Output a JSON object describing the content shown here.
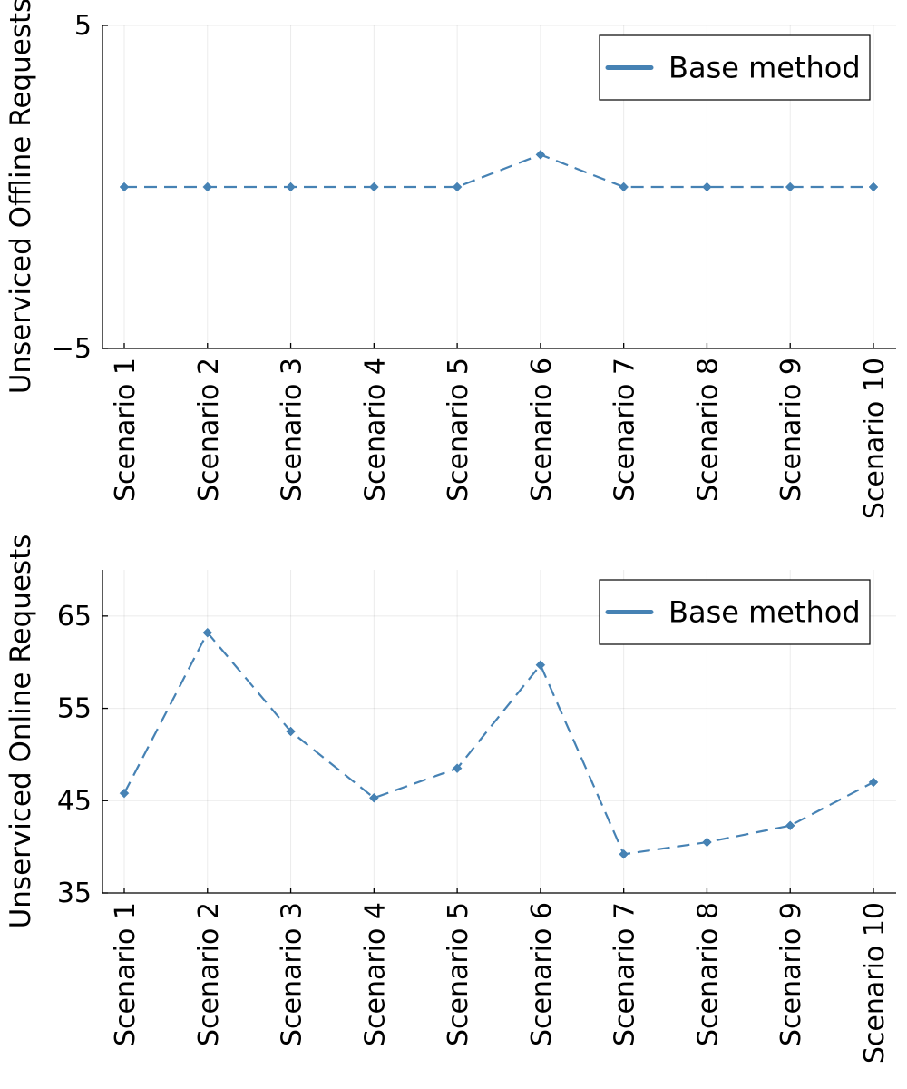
{
  "chart_data": [
    {
      "type": "line",
      "categories": [
        "Scenario 1",
        "Scenario 2",
        "Scenario 3",
        "Scenario 4",
        "Scenario 5",
        "Scenario 6",
        "Scenario 7",
        "Scenario 8",
        "Scenario 9",
        "Scenario 10"
      ],
      "series": [
        {
          "name": "Base method",
          "values": [
            0,
            0,
            0,
            0,
            0,
            1,
            0,
            0,
            0,
            0
          ]
        }
      ],
      "ylabel": "Unserviced Offline Requests",
      "ylim": [
        -5,
        5
      ],
      "yticks": [
        -5,
        5
      ],
      "ytick_labels": [
        "−5",
        "5"
      ],
      "grid": true,
      "legend_position": "top-right",
      "line_style": "dashed",
      "marker": "diamond",
      "color": "#4682b4"
    },
    {
      "type": "line",
      "categories": [
        "Scenario 1",
        "Scenario 2",
        "Scenario 3",
        "Scenario 4",
        "Scenario 5",
        "Scenario 6",
        "Scenario 7",
        "Scenario 8",
        "Scenario 9",
        "Scenario 10"
      ],
      "series": [
        {
          "name": "Base method",
          "values": [
            45.8,
            63.2,
            52.5,
            45.3,
            48.5,
            59.7,
            39.2,
            40.5,
            42.3,
            47
          ]
        }
      ],
      "ylabel": "Unserviced Online Requests",
      "ylim": [
        35,
        70
      ],
      "yticks": [
        35,
        45,
        55,
        65
      ],
      "ytick_labels": [
        "35",
        "45",
        "55",
        "65"
      ],
      "grid": true,
      "legend_position": "top-right",
      "line_style": "dashed",
      "marker": "diamond",
      "color": "#4682b4"
    }
  ]
}
